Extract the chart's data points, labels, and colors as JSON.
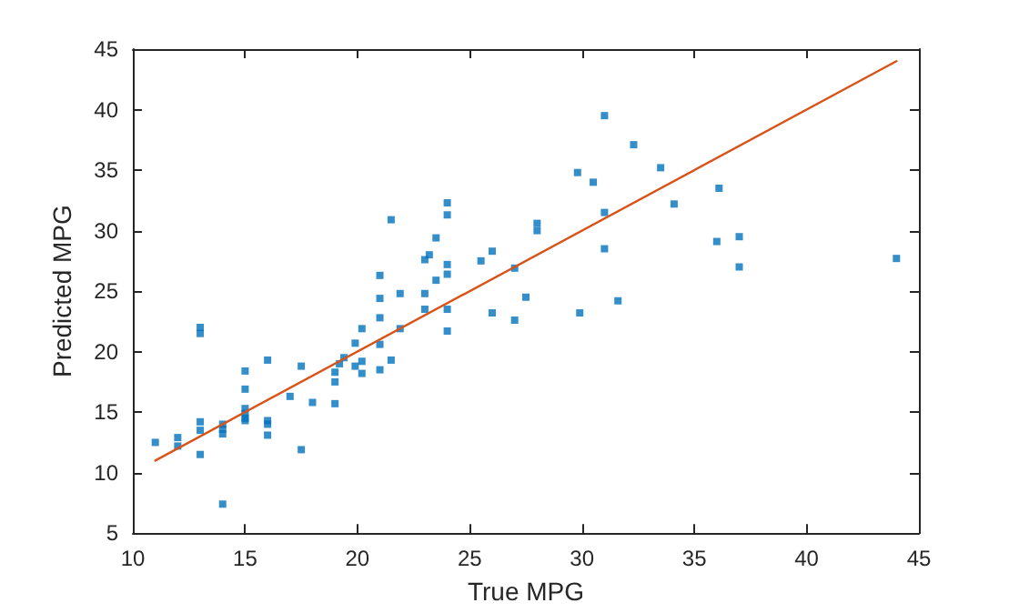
{
  "chart_data": {
    "type": "scatter",
    "xlabel": "True MPG",
    "ylabel": "Predicted MPG",
    "xlim": [
      10,
      45
    ],
    "xticks": [
      10,
      15,
      20,
      25,
      30,
      35,
      40,
      45
    ],
    "ylim": [
      5,
      45
    ],
    "yticks": [
      5,
      10,
      15,
      20,
      25,
      30,
      35,
      40,
      45
    ],
    "grid": false,
    "series": [
      {
        "color": "#0072bd",
        "marker": "square",
        "x": [
          11,
          12,
          12,
          13,
          13,
          13,
          13,
          13,
          14,
          14,
          14,
          14,
          15,
          15,
          15,
          15,
          15,
          15,
          16,
          16,
          16,
          16,
          17,
          17.5,
          17.5,
          18,
          19,
          19,
          19,
          19.2,
          19.4,
          19.9,
          19.9,
          20.2,
          20.2,
          20.2,
          21,
          21,
          21,
          21,
          21,
          21.5,
          21.5,
          21.9,
          21.9,
          23,
          23.2,
          23,
          23,
          23.5,
          23.5,
          24,
          24,
          24,
          24,
          24,
          24,
          25.5,
          26,
          26,
          27,
          27,
          27.5,
          28,
          28,
          29.8,
          30.5,
          29.9,
          31,
          31,
          31,
          31.6,
          32.3,
          33.5,
          34.1,
          36.1,
          36,
          37,
          37,
          44
        ],
        "values": [
          12.5,
          12.9,
          12.2,
          22.0,
          21.5,
          14.2,
          13.5,
          11.5,
          14.0,
          13.6,
          13.2,
          7.4,
          18.4,
          16.9,
          15.3,
          14.9,
          14.5,
          14.3,
          19.3,
          14.3,
          14.0,
          13.1,
          16.3,
          18.8,
          11.9,
          15.8,
          18.3,
          17.5,
          15.7,
          19.0,
          19.5,
          20.7,
          18.8,
          21.9,
          19.2,
          18.2,
          26.3,
          24.4,
          22.8,
          20.6,
          18.5,
          30.9,
          19.3,
          24.8,
          21.9,
          27.6,
          28.0,
          24.8,
          23.5,
          29.4,
          25.9,
          32.3,
          31.3,
          27.2,
          26.4,
          23.5,
          21.7,
          27.5,
          28.3,
          23.2,
          26.9,
          22.6,
          24.5,
          30.6,
          30.0,
          34.8,
          34.0,
          23.2,
          39.5,
          31.5,
          28.5,
          24.2,
          37.1,
          35.2,
          32.2,
          33.5,
          29.1,
          29.5,
          27.0,
          27.7
        ]
      },
      {
        "type": "line",
        "marker": "none",
        "color": "#d95319",
        "x": [
          11,
          44
        ],
        "values": [
          11,
          44
        ]
      }
    ]
  }
}
